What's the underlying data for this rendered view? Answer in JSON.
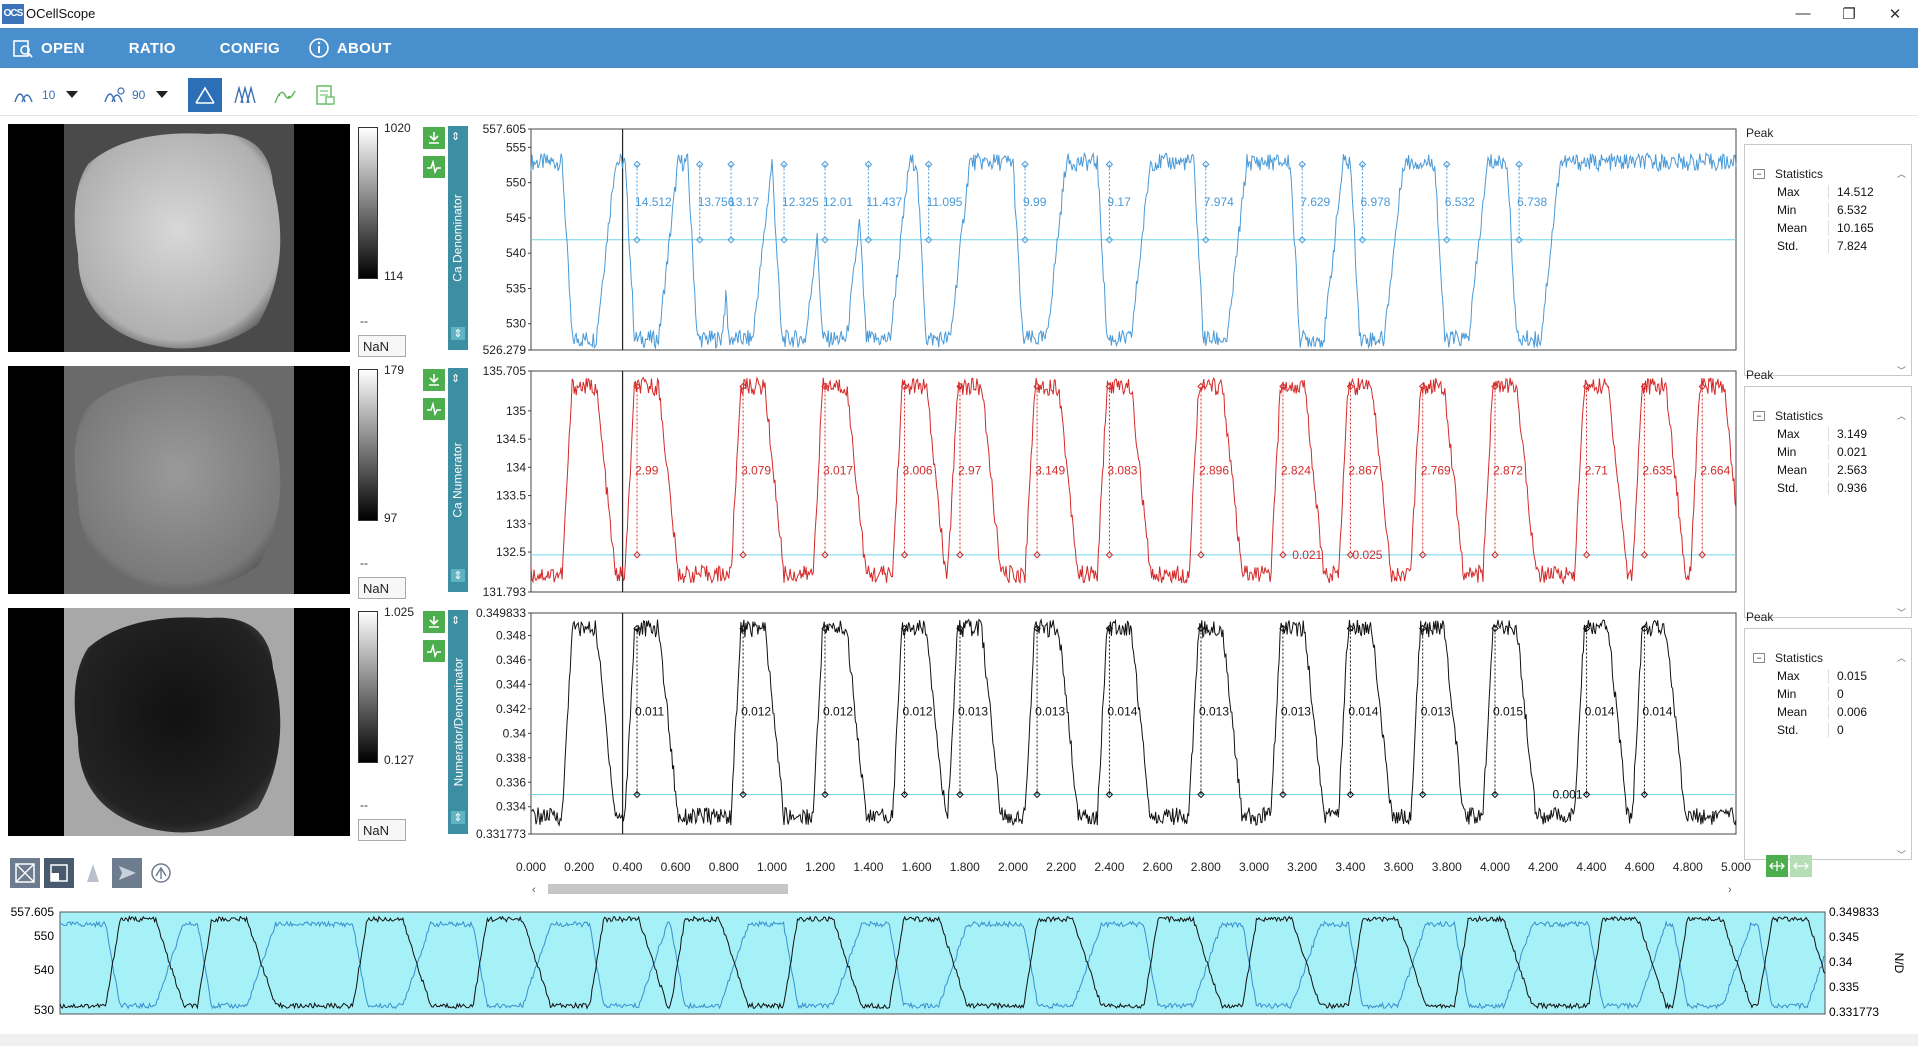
{
  "window": {
    "title": "OCellScope",
    "logo": "OCS",
    "minimize": "—",
    "maximize": "❐",
    "close": "✕"
  },
  "menu": {
    "open": "OPEN",
    "ratio": "RATIO",
    "config": "CONFIG",
    "about": "ABOUT"
  },
  "toolbar": {
    "smooth_value": "10",
    "threshold_value": "90"
  },
  "panels": [
    {
      "axis_label": "Ca Denominator",
      "colorbar_max": "1020",
      "colorbar_min": "114",
      "nan": "NaN",
      "dash": "--",
      "color": "#4a9ad8",
      "y_ticks": [
        "557.605",
        "555",
        "550",
        "545",
        "540",
        "535",
        "530",
        "526.279"
      ],
      "y_tick_values": [
        557.605,
        555,
        550,
        545,
        540,
        535,
        530,
        526.279
      ],
      "ymin": 526.279,
      "ymax": 557.605,
      "baseline": 541.9,
      "peaks": [
        {
          "x": 0.44,
          "label": "14.512"
        },
        {
          "x": 0.7,
          "label": "13.756"
        },
        {
          "x": 0.83,
          "label": "13.17"
        },
        {
          "x": 1.05,
          "label": "12.325"
        },
        {
          "x": 1.22,
          "label": "12.01"
        },
        {
          "x": 1.4,
          "label": "11.437"
        },
        {
          "x": 1.65,
          "label": "11.095"
        },
        {
          "x": 2.05,
          "label": "9.99"
        },
        {
          "x": 2.4,
          "label": "9.17"
        },
        {
          "x": 2.8,
          "label": "7.974"
        },
        {
          "x": 3.2,
          "label": "7.629"
        },
        {
          "x": 3.45,
          "label": "6.978"
        },
        {
          "x": 3.8,
          "label": "6.532"
        },
        {
          "x": 4.1,
          "label": "6.738"
        }
      ],
      "stats": {
        "title": "Statistics",
        "max": "14.512",
        "min": "6.532",
        "mean": "10.165",
        "std": "7.824"
      }
    },
    {
      "axis_label": "Ca Numerator",
      "colorbar_max": "179",
      "colorbar_min": "97",
      "nan": "NaN",
      "dash": "--",
      "color": "#d42a2a",
      "y_ticks": [
        "135.705",
        "135",
        "134.5",
        "134",
        "133.5",
        "133",
        "132.5",
        "131.793"
      ],
      "y_tick_values": [
        135.705,
        135,
        134.5,
        134,
        133.5,
        133,
        132.5,
        131.793
      ],
      "ymin": 131.793,
      "ymax": 135.705,
      "baseline": 132.45,
      "peaks": [
        {
          "x": 0.44,
          "label": "2.99"
        },
        {
          "x": 0.88,
          "label": "3.079"
        },
        {
          "x": 1.22,
          "label": "3.017"
        },
        {
          "x": 1.55,
          "label": "3.006"
        },
        {
          "x": 1.78,
          "label": "2.97"
        },
        {
          "x": 2.1,
          "label": "3.149"
        },
        {
          "x": 2.4,
          "label": "3.083"
        },
        {
          "x": 2.78,
          "label": "2.896"
        },
        {
          "x": 3.12,
          "label": "2.824"
        },
        {
          "x": 3.4,
          "label": "2.867"
        },
        {
          "x": 3.7,
          "label": "2.769"
        },
        {
          "x": 4.0,
          "label": "2.872"
        },
        {
          "x": 4.38,
          "label": "2.71"
        },
        {
          "x": 4.62,
          "label": "2.635"
        },
        {
          "x": 4.86,
          "label": "2.664"
        }
      ],
      "extra_labels": [
        {
          "x": 3.2,
          "label": "0.021"
        },
        {
          "x": 3.45,
          "label": "0.025"
        }
      ],
      "stats": {
        "title": "Statistics",
        "max": "3.149",
        "min": "0.021",
        "mean": "2.563",
        "std": "0.936"
      }
    },
    {
      "axis_label": "Numerator/Denominator",
      "colorbar_max": "1.025",
      "colorbar_min": "0.127",
      "nan": "NaN",
      "dash": "--",
      "color": "#111111",
      "y_ticks": [
        "0.349833",
        "0.348",
        "0.346",
        "0.344",
        "0.342",
        "0.34",
        "0.338",
        "0.336",
        "0.334",
        "0.331773"
      ],
      "y_tick_values": [
        0.349833,
        0.348,
        0.346,
        0.344,
        0.342,
        0.34,
        0.338,
        0.336,
        0.334,
        0.331773
      ],
      "ymin": 0.331773,
      "ymax": 0.349833,
      "baseline": 0.335,
      "peaks": [
        {
          "x": 0.44,
          "label": "0.011"
        },
        {
          "x": 0.88,
          "label": "0.012"
        },
        {
          "x": 1.22,
          "label": "0.012"
        },
        {
          "x": 1.55,
          "label": "0.012"
        },
        {
          "x": 1.78,
          "label": "0.013"
        },
        {
          "x": 2.1,
          "label": "0.013"
        },
        {
          "x": 2.4,
          "label": "0.014"
        },
        {
          "x": 2.78,
          "label": "0.013"
        },
        {
          "x": 3.12,
          "label": "0.013"
        },
        {
          "x": 3.4,
          "label": "0.014"
        },
        {
          "x": 3.7,
          "label": "0.013"
        },
        {
          "x": 4.0,
          "label": "0.015"
        },
        {
          "x": 4.38,
          "label": "0.014"
        },
        {
          "x": 4.62,
          "label": "0.014"
        }
      ],
      "extra_labels": [
        {
          "x": 4.28,
          "label": "0.001"
        }
      ],
      "stats": {
        "title": "Statistics",
        "max": "0.015",
        "min": "0",
        "mean": "0.006",
        "std": "0"
      }
    }
  ],
  "peak_label": "Peak",
  "x_axis": {
    "ticks": [
      "0.000",
      "0.200",
      "0.400",
      "0.600",
      "0.800",
      "1.000",
      "1.200",
      "1.400",
      "1.600",
      "1.800",
      "2.000",
      "2.200",
      "2.400",
      "2.600",
      "2.800",
      "3.000",
      "3.200",
      "3.400",
      "3.600",
      "3.800",
      "4.000",
      "4.200",
      "4.400",
      "4.600",
      "4.800",
      "5.000"
    ],
    "min": 0,
    "max": 5.0
  },
  "overview": {
    "left_ticks": [
      "557.605",
      "550",
      "540",
      "530"
    ],
    "right_ticks": [
      "0.349833",
      "0.345",
      "0.34",
      "0.335",
      "0.331773"
    ],
    "right_label": "N/D",
    "bg": "#a6f1f7"
  },
  "chart_data": [
    {
      "type": "line",
      "title": "",
      "ylabel": "Ca Denominator",
      "xlabel": "",
      "xlim": [
        0,
        5.0
      ],
      "ylim": [
        526.279,
        557.605
      ],
      "series": [
        {
          "name": "Ca Denominator",
          "x": [
            0.44,
            0.7,
            0.83,
            1.05,
            1.22,
            1.4,
            1.65,
            2.05,
            2.4,
            2.8,
            3.2,
            3.45,
            3.8,
            4.1
          ],
          "peak_amplitude": [
            14.512,
            13.756,
            13.17,
            12.325,
            12.01,
            11.437,
            11.095,
            9.99,
            9.17,
            7.974,
            7.629,
            6.978,
            6.532,
            6.738
          ]
        }
      ]
    },
    {
      "type": "line",
      "title": "",
      "ylabel": "Ca Numerator",
      "xlabel": "",
      "xlim": [
        0,
        5.0
      ],
      "ylim": [
        131.793,
        135.705
      ],
      "series": [
        {
          "name": "Ca Numerator",
          "x": [
            0.44,
            0.88,
            1.22,
            1.55,
            1.78,
            2.1,
            2.4,
            2.78,
            3.12,
            3.4,
            3.7,
            4.0,
            4.38,
            4.62,
            4.86
          ],
          "peak_amplitude": [
            2.99,
            3.079,
            3.017,
            3.006,
            2.97,
            3.149,
            3.083,
            2.896,
            2.824,
            2.867,
            2.769,
            2.872,
            2.71,
            2.635,
            2.664
          ]
        }
      ]
    },
    {
      "type": "line",
      "title": "",
      "ylabel": "Numerator/Denominator",
      "xlabel": "",
      "xlim": [
        0,
        5.0
      ],
      "ylim": [
        0.331773,
        0.349833
      ],
      "series": [
        {
          "name": "Numerator/Denominator",
          "x": [
            0.44,
            0.88,
            1.22,
            1.55,
            1.78,
            2.1,
            2.4,
            2.78,
            3.12,
            3.4,
            3.7,
            4.0,
            4.38,
            4.62
          ],
          "peak_amplitude": [
            0.011,
            0.012,
            0.012,
            0.012,
            0.013,
            0.013,
            0.014,
            0.013,
            0.013,
            0.014,
            0.013,
            0.015,
            0.014,
            0.014
          ]
        }
      ]
    }
  ]
}
